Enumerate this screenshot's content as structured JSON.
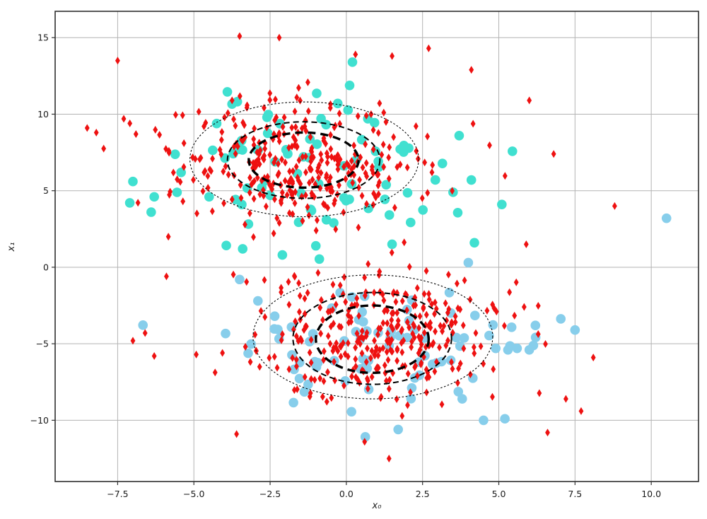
{
  "chart_data": {
    "type": "scatter",
    "title": "",
    "xlabel": "x₀",
    "ylabel": "x₁",
    "xlim": [
      -9.55,
      11.55
    ],
    "ylim": [
      -14.0,
      16.72
    ],
    "grid": true,
    "legend": null,
    "xticks": {
      "values": [
        -7.5,
        -5,
        -2.5,
        0,
        2.5,
        5,
        7.5,
        10
      ],
      "labels": [
        "−7.5",
        "−5.0",
        "−2.5",
        "0.0",
        "2.5",
        "5.0",
        "7.5",
        "10.0"
      ]
    },
    "yticks": {
      "values": [
        15,
        10,
        5,
        0,
        -5,
        -10
      ],
      "labels": [
        "15",
        "10",
        "5",
        "0",
        "−5",
        "−10"
      ]
    },
    "series": [
      {
        "name": "cluster1-cyan-circles",
        "marker": "circle",
        "color": "#40E0D0",
        "radius": 6.8,
        "clusters": [
          {
            "mean": [
              -1.2,
              6.5
            ],
            "std": [
              2.6,
              2.7
            ],
            "n": 78,
            "seed": 21
          }
        ],
        "extra_points": [
          [
            -7.0,
            5.6
          ],
          [
            -6.3,
            4.6
          ],
          [
            -6.4,
            3.6
          ],
          [
            -4.5,
            4.6
          ],
          [
            0.2,
            13.4
          ],
          [
            3.7,
            8.6
          ],
          [
            4.1,
            5.7
          ],
          [
            3.5,
            4.9
          ],
          [
            5.1,
            4.1
          ],
          [
            4.2,
            1.6
          ],
          [
            -3.4,
            1.2
          ],
          [
            -1.0,
            1.4
          ],
          [
            1.5,
            1.5
          ]
        ]
      },
      {
        "name": "cluster2-skyblue-circles",
        "marker": "circle",
        "color": "#87CEEB",
        "radius": 6.8,
        "clusters": [
          {
            "mean": [
              1.2,
              -5.0
            ],
            "std": [
              2.4,
              2.0
            ],
            "n": 78,
            "seed": 42
          }
        ],
        "extra_points": [
          [
            10.5,
            3.2
          ],
          [
            7.5,
            -4.1
          ],
          [
            6.2,
            -3.8
          ],
          [
            4.9,
            -5.3
          ],
          [
            5.3,
            -5.4
          ],
          [
            5.6,
            -5.3
          ],
          [
            6.0,
            -5.4
          ],
          [
            4.0,
            0.3
          ],
          [
            3.8,
            -8.6
          ],
          [
            1.7,
            -10.6
          ],
          [
            5.2,
            -9.9
          ],
          [
            4.5,
            -10.0
          ],
          [
            -3.5,
            -0.8
          ],
          [
            -2.9,
            -2.2
          ]
        ]
      },
      {
        "name": "class-red-thin-diamonds",
        "marker": "thin-diamond",
        "color": "#EE1111",
        "marker_w": 3.4,
        "marker_h": 5.5,
        "clusters": [
          {
            "mean": [
              -1.5,
              7.0
            ],
            "std": [
              2.05,
              2.1
            ],
            "n": 330,
            "seed": 7
          },
          {
            "mean": [
              0.9,
              -4.6
            ],
            "std": [
              2.1,
              2.1
            ],
            "n": 330,
            "seed": 13
          }
        ],
        "extra_points": [
          [
            -8.5,
            9.1
          ],
          [
            -8.2,
            8.8
          ],
          [
            -7.5,
            13.5
          ],
          [
            -7.3,
            9.7
          ],
          [
            -7.1,
            9.4
          ],
          [
            -6.9,
            8.7
          ],
          [
            -3.5,
            15.1
          ],
          [
            -2.2,
            15.0
          ],
          [
            0.3,
            13.9
          ],
          [
            1.5,
            13.8
          ],
          [
            2.7,
            14.3
          ],
          [
            4.1,
            12.9
          ],
          [
            6.0,
            10.9
          ],
          [
            6.8,
            7.4
          ],
          [
            8.8,
            4.0
          ],
          [
            5.9,
            1.5
          ],
          [
            -5.9,
            -0.6
          ],
          [
            -7.0,
            -4.8
          ],
          [
            -6.6,
            -4.3
          ],
          [
            -6.3,
            -5.8
          ],
          [
            -3.6,
            -10.9
          ],
          [
            0.6,
            -11.4
          ],
          [
            1.4,
            -12.5
          ],
          [
            6.6,
            -10.8
          ],
          [
            7.2,
            -8.6
          ],
          [
            7.7,
            -9.4
          ],
          [
            8.1,
            -5.9
          ]
        ]
      }
    ],
    "ellipse_styles": {
      "inner": {
        "stroke_width": 3.4,
        "dash": [
          11,
          7
        ]
      },
      "middle": {
        "stroke_width": 2.0,
        "dash": [
          8,
          5
        ]
      },
      "outer": {
        "stroke_width": 1.1,
        "dash": [
          2.5,
          2.6
        ]
      }
    },
    "gmm_ellipses": [
      {
        "cluster": "top",
        "level": "inner",
        "cx": -1.4,
        "cy": 7.0,
        "rx": 1.8,
        "ry": 1.8
      },
      {
        "cluster": "top",
        "level": "middle",
        "cx": -1.4,
        "cy": 7.0,
        "rx": 2.5,
        "ry": 2.5
      },
      {
        "cluster": "top",
        "level": "outer",
        "cx": -1.38,
        "cy": 7.05,
        "rx": 3.75,
        "ry": 3.75
      },
      {
        "cluster": "bottom",
        "level": "inner",
        "cx": 0.85,
        "cy": -4.7,
        "rx": 1.85,
        "ry": 2.2
      },
      {
        "cluster": "bottom",
        "level": "middle",
        "cx": 0.85,
        "cy": -4.65,
        "rx": 2.6,
        "ry": 3.0
      },
      {
        "cluster": "bottom",
        "level": "outer",
        "cx": 0.87,
        "cy": -4.55,
        "rx": 3.93,
        "ry": 4.05
      }
    ]
  },
  "plot_style": {
    "background": "#ffffff",
    "grid_color": "#b3b3b3",
    "spine_color": "#2e2e2e",
    "tick_color": "#333333",
    "tick_label_color": "#1a1a1a",
    "ellipse_color": "#000000"
  }
}
